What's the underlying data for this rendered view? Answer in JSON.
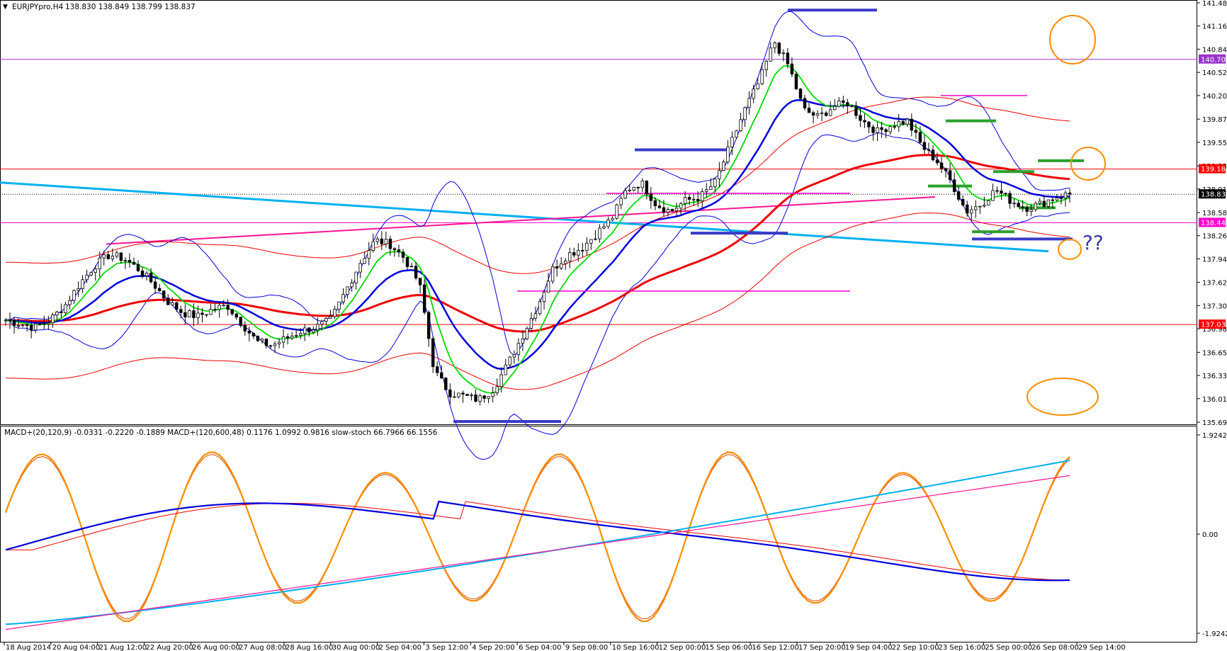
{
  "header": {
    "symbol": "EURJPYpro,H4",
    "ohlc": "138.830 138.849 138.799 138.837",
    "indicator_legend": "MACD+(20,120,9) -0.0331 -0.2220 -0.1889  MACD+(120,600,48) 0.1176 1.0992 0.9816  slow-stoch 66.7966 66.1556"
  },
  "annotations": {
    "question": "??"
  },
  "chart_data": [
    {
      "type": "candlestick",
      "title": "EURJPYpro,H4",
      "ylim": [
        135.69,
        141.48
      ],
      "y_ticks": [
        "141.480",
        "141.160",
        "140.840",
        "140.520",
        "140.200",
        "139.875",
        "139.555",
        "139.230",
        "138.910",
        "138.585",
        "138.265",
        "137.945",
        "137.620",
        "137.300",
        "136.980",
        "136.655",
        "136.335",
        "136.015",
        "135.690"
      ],
      "price_markers": [
        {
          "value": "140.700",
          "color": "#9932cc"
        },
        {
          "value": "139.185",
          "color": "#ff0000"
        },
        {
          "value": "138.837",
          "color": "#000000"
        },
        {
          "value": "138.444",
          "color": "#ff00cc"
        },
        {
          "value": "137.039",
          "color": "#ff0000"
        }
      ],
      "x_labels": [
        "18 Aug 2014",
        "20 Aug 04:00",
        "21 Aug 12:00",
        "22 Aug 20:00",
        "26 Aug 00:00",
        "27 Aug 08:00",
        "28 Aug 16:00",
        "30 Aug 00:00",
        "2 Sep 04:00",
        "3 Sep 12:00",
        "4 Sep 20:00",
        "6 Sep 04:00",
        "9 Sep 08:00",
        "10 Sep 16:00",
        "12 Sep 00:00",
        "15 Sep 06:00",
        "16 Sep 12:00",
        "17 Sep 20:00",
        "19 Sep 04:00",
        "22 Sep 10:00",
        "23 Sep 16:00",
        "25 Sep 00:00",
        "26 Sep 08:00",
        "29 Sep 14:00"
      ],
      "close_path": [
        137.1,
        137.05,
        137.0,
        137.1,
        137.3,
        137.6,
        137.85,
        138.0,
        137.95,
        137.8,
        137.6,
        137.35,
        137.2,
        137.15,
        137.25,
        137.3,
        137.05,
        136.8,
        136.75,
        136.85,
        136.95,
        137.0,
        137.1,
        137.5,
        137.9,
        138.2,
        138.15,
        137.95,
        137.6,
        136.4,
        136.1,
        136.05,
        136.0,
        136.15,
        136.5,
        136.9,
        137.3,
        137.8,
        138.0,
        138.1,
        138.3,
        138.5,
        138.9,
        139.0,
        138.7,
        138.6,
        138.75,
        138.8,
        139.0,
        139.5,
        140.0,
        140.4,
        140.95,
        140.6,
        140.0,
        139.9,
        140.05,
        140.1,
        139.85,
        139.7,
        139.8,
        139.85,
        139.5,
        139.3,
        139.0,
        138.6,
        138.7,
        138.9,
        138.75,
        138.65,
        138.7,
        138.8,
        138.84
      ],
      "series": [
        {
          "name": "",
          "color": "#00dd00"
        },
        {
          "name": "",
          "color": "#0000dd"
        },
        {
          "name": "",
          "color": "#ee0000"
        },
        {
          "name": "",
          "color": "#00b0f0"
        },
        {
          "name": "",
          "color": "#ff1493"
        }
      ]
    },
    {
      "type": "line",
      "title": "MACD+(20,120,9)",
      "ylim": [
        -1.9242,
        1.9242
      ],
      "y_ticks": [
        "1.9242",
        "0.00",
        "-1.9242"
      ],
      "series": [
        {
          "name": "slow-stoch",
          "color": "#ff8c00"
        },
        {
          "name": "MACD+(20,120,9)",
          "color": "#0000dd"
        },
        {
          "name": "MACD+(120,600,48)",
          "color": "#00b0f0"
        }
      ]
    }
  ]
}
